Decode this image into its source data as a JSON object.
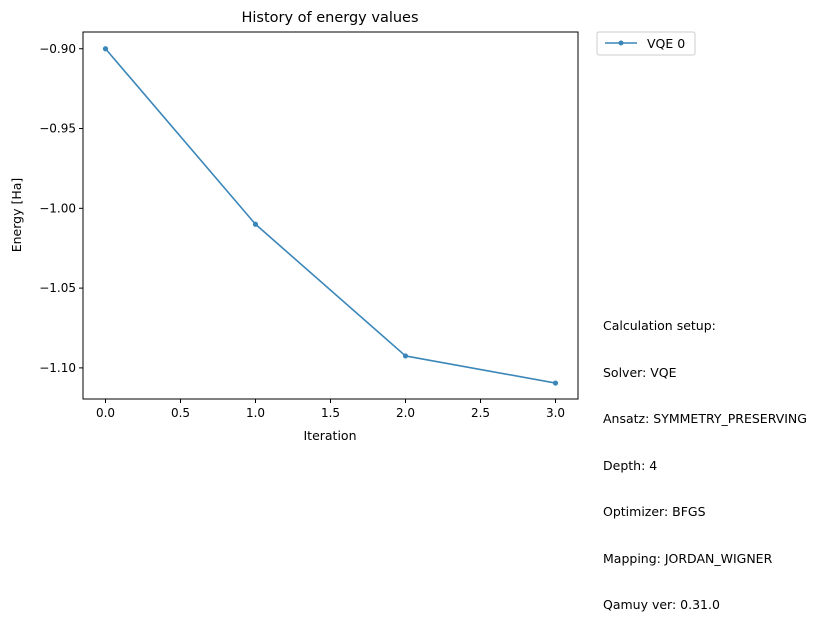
{
  "chart_data": {
    "type": "line",
    "title": "History of energy values",
    "xlabel": "Iteration",
    "ylabel": "Energy [Ha]",
    "xlim": [
      -0.15,
      3.15
    ],
    "ylim": [
      -1.1195,
      -0.8895
    ],
    "xticks": [
      0.0,
      0.5,
      1.0,
      1.5,
      2.0,
      2.5,
      3.0
    ],
    "xtick_labels": [
      "0.0",
      "0.5",
      "1.0",
      "1.5",
      "2.0",
      "2.5",
      "3.0"
    ],
    "yticks": [
      -0.9,
      -0.95,
      -1.0,
      -1.05,
      -1.1
    ],
    "ytick_labels": [
      "−0.90",
      "−0.95",
      "−1.00",
      "−1.05",
      "−1.10"
    ],
    "grid": false,
    "legend_position": "outside-top-right",
    "series": [
      {
        "name": "VQE 0",
        "color": "#3a86b8",
        "x": [
          0,
          1,
          2,
          3
        ],
        "y": [
          -0.9,
          -1.01,
          -1.0925,
          -1.1095
        ]
      }
    ]
  },
  "setup_text": {
    "heading": "Calculation setup:",
    "lines": [
      "Solver: VQE",
      "Ansatz: SYMMETRY_PRESERVING",
      "Depth: 4",
      "Optimizer: BFGS",
      "Mapping: JORDAN_WIGNER",
      "Qamuy ver: 0.31.0"
    ]
  }
}
